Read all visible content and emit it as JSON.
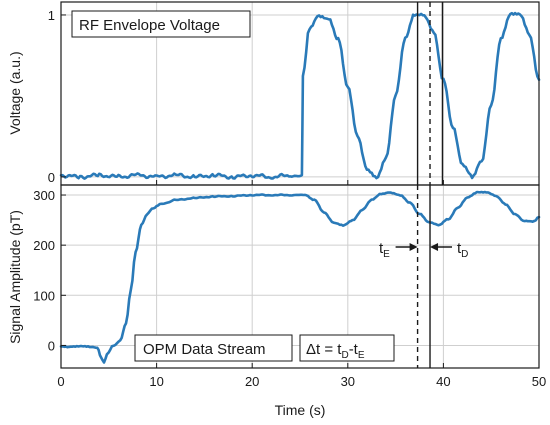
{
  "chart_data": [
    {
      "type": "line",
      "panel": "top",
      "title": "RF Envelope Voltage",
      "xlabel": "",
      "ylabel": "Voltage (a.u.)",
      "xlim": [
        0,
        50
      ],
      "ylim": [
        -0.05,
        1.08
      ],
      "yticks": [
        0,
        1
      ],
      "ytick_labels": [
        "0",
        "1"
      ],
      "grid": true,
      "color": "#2a7ab8",
      "series": [
        {
          "x": [
            0,
            2,
            4,
            6,
            8,
            10,
            12,
            14,
            16,
            18,
            20,
            22,
            24,
            25.2,
            25.3,
            26,
            27,
            28,
            29,
            30,
            31,
            32,
            33,
            34,
            35,
            36,
            37,
            38,
            39,
            40,
            41,
            42,
            43,
            44,
            45,
            46,
            47,
            48,
            49,
            50
          ],
          "y": [
            0.01,
            0.0,
            0.01,
            0.0,
            0.01,
            0.0,
            0.01,
            0.0,
            0.01,
            0.0,
            0.01,
            0.0,
            0.01,
            0.0,
            0.62,
            0.92,
            1.0,
            0.98,
            0.85,
            0.55,
            0.25,
            0.05,
            0.0,
            0.12,
            0.5,
            0.85,
            1.0,
            1.0,
            0.9,
            0.6,
            0.3,
            0.07,
            0.0,
            0.1,
            0.45,
            0.85,
            1.0,
            1.0,
            0.88,
            0.6
          ]
        }
      ]
    },
    {
      "type": "line",
      "panel": "bottom",
      "title": "OPM Data Stream",
      "xlabel": "Time (s)",
      "ylabel": "Signal Amplitude (pT)",
      "xlim": [
        0,
        50
      ],
      "ylim": [
        -45,
        320
      ],
      "xticks": [
        0,
        10,
        20,
        30,
        40,
        50
      ],
      "yticks": [
        0,
        100,
        200,
        300
      ],
      "grid": true,
      "color": "#2a7ab8",
      "series": [
        {
          "x": [
            0,
            1,
            2,
            3,
            3.8,
            4.2,
            4.5,
            4.8,
            5.5,
            6.2,
            6.8,
            7.3,
            7.8,
            8.4,
            9.0,
            9.5,
            10.5,
            12,
            14,
            16,
            18,
            20,
            22,
            24,
            25.5,
            26.5,
            27.5,
            28.5,
            29.5,
            30.5,
            31.5,
            32.5,
            33.5,
            34.5,
            35.5,
            36.5,
            37.5,
            38.5,
            39.5,
            40.5,
            41.5,
            42.5,
            43.5,
            44.5,
            45.5,
            46.5,
            47.5,
            48.5,
            49.5,
            50
          ],
          "y": [
            -2,
            -3,
            -2,
            -3,
            -5,
            -25,
            -35,
            -18,
            0,
            10,
            45,
            110,
            185,
            240,
            262,
            272,
            282,
            290,
            294,
            297,
            298,
            300,
            300,
            300,
            300,
            290,
            265,
            245,
            240,
            250,
            270,
            290,
            302,
            305,
            300,
            285,
            262,
            245,
            240,
            252,
            275,
            295,
            305,
            305,
            298,
            282,
            262,
            248,
            247,
            256
          ]
        }
      ],
      "annotations": {
        "delta_box": "Δt = t",
        "delta_sub_d": "D",
        "delta_mid": "-t",
        "delta_sub_e": "E",
        "te_main": "t",
        "te_sub": "E",
        "td_main": "t",
        "td_sub": "D"
      }
    }
  ],
  "markers": {
    "solid_line_x": 37.3,
    "dashed_line_1_x": 38.6,
    "dashed_line_2_x": 39.9,
    "bottom_dashed_x": 37.3,
    "bottom_solid_x": 38.6
  }
}
